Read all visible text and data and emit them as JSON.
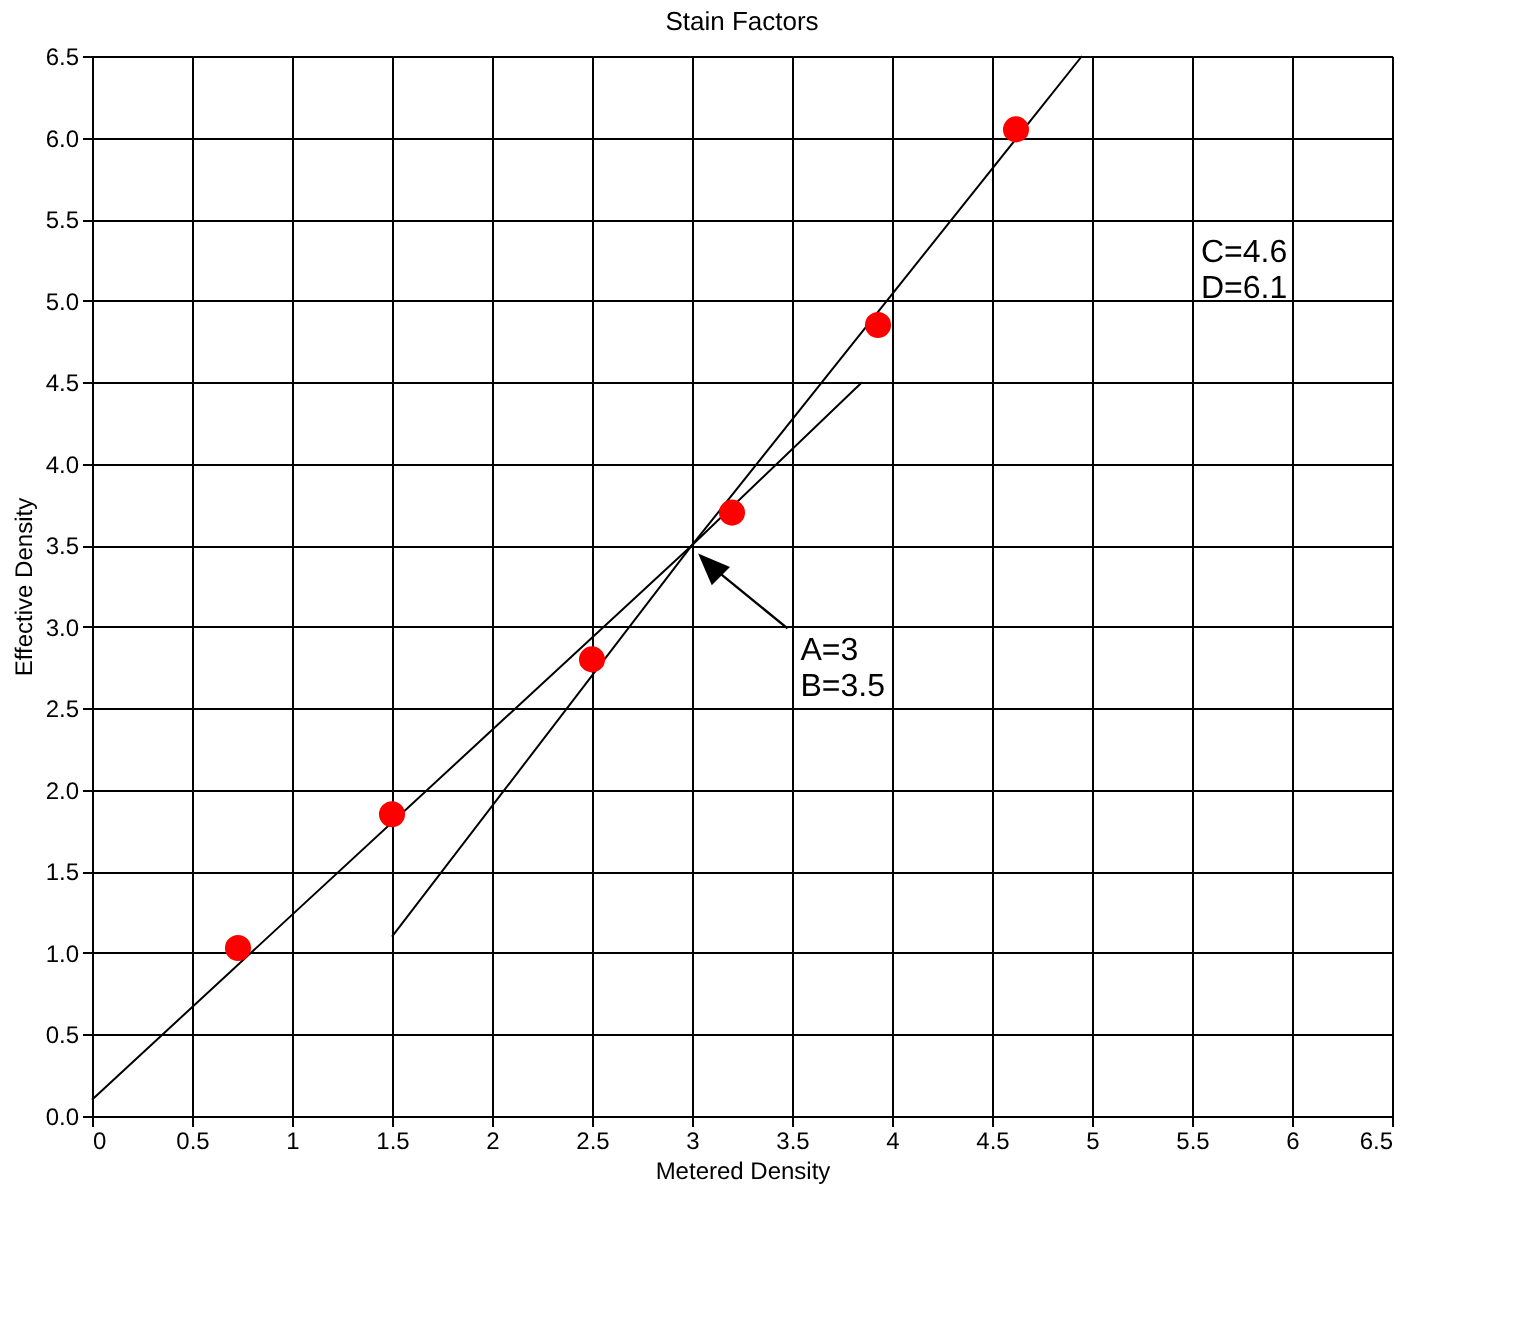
{
  "chart_data": {
    "type": "scatter",
    "title": "Stain Factors",
    "xlabel": "Metered Density",
    "ylabel": "Effective Density",
    "xlim": [
      0,
      6.5
    ],
    "ylim": [
      0,
      6.5
    ],
    "xticks": [
      0,
      0.5,
      1,
      1.5,
      2,
      2.5,
      3,
      3.5,
      4,
      4.5,
      5,
      5.5,
      6,
      6.5
    ],
    "yticks": [
      {
        "value": 0,
        "label": "0.0"
      },
      0.5,
      {
        "value": 1,
        "label": "1.0"
      },
      1.5,
      {
        "value": 2,
        "label": "2.0"
      },
      2.5,
      {
        "value": 3,
        "label": "3.0"
      },
      3.5,
      {
        "value": 4,
        "label": "4.0"
      },
      4.5,
      {
        "value": 5,
        "label": "5.0"
      },
      5.5,
      {
        "value": 6,
        "label": "6.0"
      },
      6.5
    ],
    "grid": true,
    "series": [
      {
        "type": "line",
        "color": "#000000",
        "marker": "none",
        "x": [
          0,
          3,
          3.85
        ],
        "values": [
          0.1,
          3.5,
          4.5
        ]
      },
      {
        "type": "line",
        "color": "#000000",
        "marker": "none",
        "x": [
          1.5,
          3,
          4.95
        ],
        "values": [
          1.1,
          3.5,
          6.5
        ]
      },
      {
        "color": "#ff0000",
        "marker": "circle",
        "x": [
          0.73,
          1.5,
          2.5,
          3.2,
          3.93,
          4.62
        ],
        "values": [
          1.03,
          1.85,
          2.8,
          3.7,
          4.85,
          6.05
        ]
      }
    ],
    "annotations": [
      "A=3\nB=3.5",
      "C=4.6\nD=6.1"
    ]
  }
}
